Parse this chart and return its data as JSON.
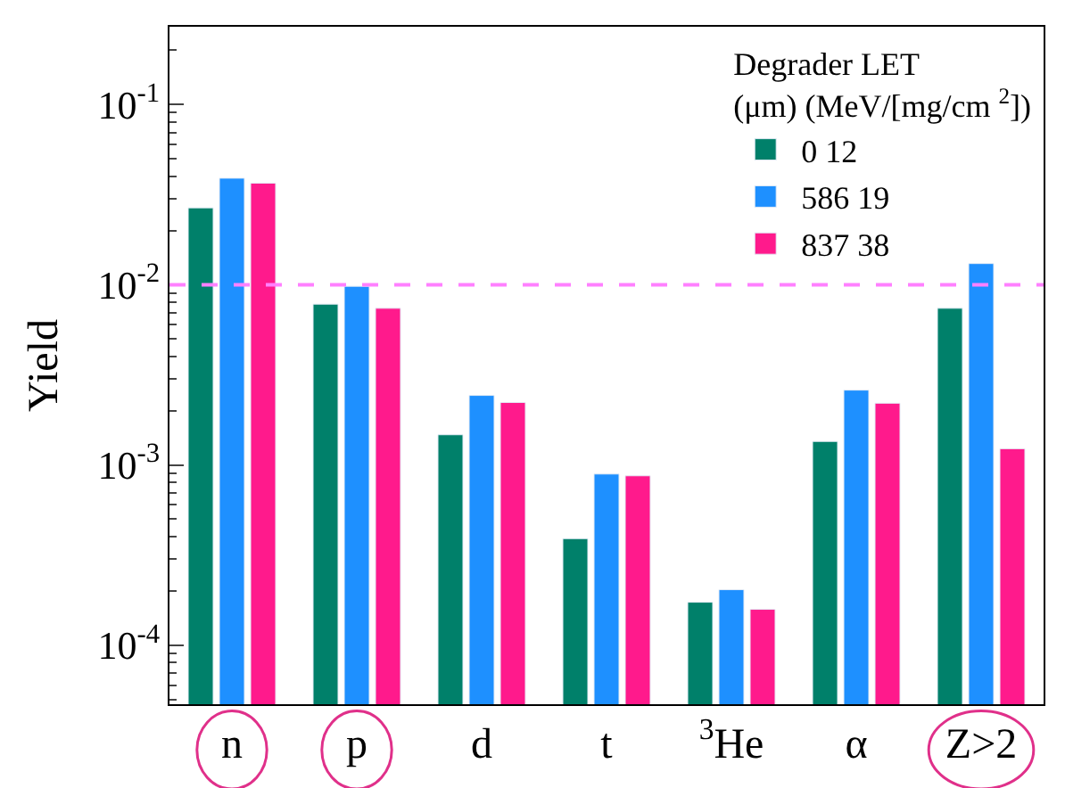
{
  "chart_data": {
    "type": "bar",
    "ylabel": "Yield",
    "categories": [
      "n",
      "p",
      "d",
      "t",
      "$^{3}$He",
      "α",
      "Z>2"
    ],
    "series": [
      {
        "name": "0 12",
        "color": "#00806a",
        "values": [
          0.0267,
          0.0078,
          0.00147,
          0.00039,
          0.000173,
          0.00135,
          0.0074
        ]
      },
      {
        "name": "586 19",
        "color": "#1e90ff",
        "values": [
          0.039,
          0.0098,
          0.00243,
          0.00089,
          0.000203,
          0.0026,
          0.0131
        ]
      },
      {
        "name": "837 38",
        "color": "#ff1a8c",
        "values": [
          0.0366,
          0.0074,
          0.00222,
          0.00087,
          0.000158,
          0.0022,
          0.00123
        ]
      }
    ],
    "legend_title": "Degrader LET\n(μm) (MeV/[mg/cm $^{2}$])",
    "log": "y",
    "ylim": [
      4.7e-05,
      0.27
    ],
    "yticks": [
      {
        "value": 0.0001,
        "label": "10$^{-4}$"
      },
      {
        "value": 0.001,
        "label": "10$^{-3}$"
      },
      {
        "value": 0.01,
        "label": "10$^{-2}$"
      },
      {
        "value": 0.1,
        "label": "10$^{-1}$"
      }
    ],
    "ref_lines": [
      {
        "axis": "y",
        "value": 0.01,
        "color": "#ff80ff",
        "line_style": "dashed"
      }
    ],
    "legend": "top right"
  }
}
